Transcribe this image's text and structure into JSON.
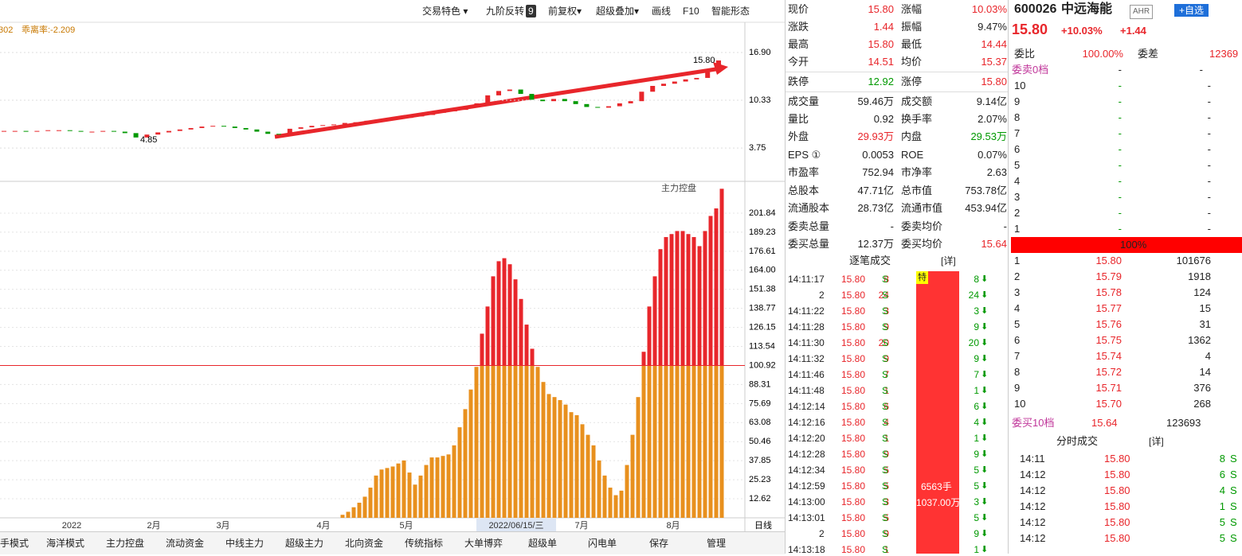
{
  "toolbar": [
    "交易特色 ▾",
    "九阶反转",
    "9",
    "前复权▾",
    "超级叠加▾",
    "画线",
    "F10",
    "智能形态"
  ],
  "chart_data": [
    {
      "type": "candlestick",
      "annotations": [
        "302",
        "乖离率:-2.209"
      ],
      "last_label": "15.80",
      "low_label": "4.85",
      "close": [
        6.1,
        6.1,
        6.0,
        6.1,
        6.2,
        6.2,
        6.1,
        6.0,
        6.0,
        6.1,
        6.0,
        5.8,
        5.2,
        5.6,
        5.9,
        6.1,
        6.3,
        6.5,
        6.7,
        6.8,
        6.7,
        6.5,
        6.3,
        6.0,
        5.7,
        5.6,
        6.4,
        6.6,
        6.8,
        6.9,
        7.0,
        7.2,
        7.3,
        7.5,
        7.6,
        7.8,
        7.9,
        8.1,
        8.3,
        8.6,
        8.8,
        9.0,
        9.4,
        9.9,
        11.0,
        11.6,
        11.8,
        11.2,
        10.4,
        10.2,
        10.5,
        10.2,
        9.8,
        9.4,
        9.3,
        9.5,
        9.9,
        10.2,
        11.5,
        12.3,
        12.6,
        12.9,
        13.2,
        13.4,
        14.2,
        15.8
      ],
      "up_color": "#e8262b",
      "down_color": "#009900",
      "ylim": [
        -0.84,
        20.84
      ],
      "yticks": [
        3.75,
        10.33,
        {
          "value": 16.9,
          "label": "16.90"
        }
      ]
    },
    {
      "type": "bar",
      "title": "主力控盘",
      "values": [
        2,
        4,
        7,
        10,
        14,
        20,
        28,
        32,
        33,
        34,
        36,
        38,
        30,
        22,
        28,
        35,
        40,
        40,
        41,
        42,
        48,
        60,
        72,
        85,
        100,
        122,
        140,
        160,
        170,
        172,
        168,
        158,
        145,
        128,
        112,
        100,
        90,
        82,
        80,
        78,
        75,
        70,
        68,
        62,
        55,
        48,
        38,
        28,
        20,
        15,
        18,
        35,
        55,
        80,
        110,
        140,
        160,
        178,
        186,
        188,
        190,
        190,
        188,
        186,
        180,
        190,
        200,
        205,
        218
      ],
      "color": "#e8901e",
      "high_color": "#e8262b",
      "threshold": 100.92,
      "ylim": [
        0,
        220.8
      ],
      "yticks": [
        12.62,
        25.23,
        37.85,
        50.46,
        63.08,
        75.69,
        88.31,
        100.92,
        113.54,
        126.15,
        138.77,
        151.38,
        {
          "value": 164,
          "label": "164.00"
        },
        176.61,
        189.23,
        201.84
      ],
      "xlabels": [
        "2022",
        "2月",
        "3月",
        "4月",
        "5月",
        "2022/06/15/三",
        "7月",
        "8月"
      ],
      "period": "日线"
    }
  ],
  "tabs": [
    "手模式",
    "海洋模式",
    "主力控盘",
    "流动资金",
    "中线主力",
    "超级主力",
    "北向资金",
    "传统指标",
    "大单博弈",
    "超级单",
    "闪电单",
    "保存",
    "管理"
  ],
  "quote": [
    [
      "现价",
      "15.80",
      "涨幅",
      "10.03%"
    ],
    [
      "涨跌",
      "1.44",
      "振幅",
      "9.47%"
    ],
    [
      "最高",
      "15.80",
      "最低",
      "14.44"
    ],
    [
      "今开",
      "14.51",
      "均价",
      "15.37"
    ],
    [
      "跌停",
      "12.92",
      "涨停",
      "15.80"
    ],
    [
      "成交量",
      "59.46万",
      "成交额",
      "9.14亿"
    ],
    [
      "量比",
      "0.92",
      "换手率",
      "2.07%"
    ],
    [
      "外盘",
      "29.93万",
      "内盘",
      "29.53万"
    ],
    [
      "EPS ①",
      "0.0053",
      "ROE",
      "0.07%"
    ],
    [
      "市盈率",
      "752.94",
      "市净率",
      "2.63"
    ],
    [
      "总股本",
      "47.71亿",
      "总市值",
      "753.78亿"
    ],
    [
      "流通股本",
      "28.73亿",
      "流通市值",
      "453.94亿"
    ],
    [
      "委卖总量",
      "-",
      "委卖均价",
      "-"
    ],
    [
      "委买总量",
      "12.37万",
      "委买均价",
      "15.64"
    ]
  ],
  "ticks_title": "逐笔成交",
  "detail": "[详]",
  "big_flag": "特",
  "big_vol": "6563手",
  "big_amt": "1037.00万",
  "trades": [
    [
      "14:11:17",
      "15.80",
      "8",
      "S"
    ],
    [
      "2",
      "15.80",
      "24",
      "S"
    ],
    [
      "14:11:22",
      "15.80",
      "3",
      "S"
    ],
    [
      "14:11:28",
      "15.80",
      "9",
      "S"
    ],
    [
      "14:11:30",
      "15.80",
      "20",
      "S"
    ],
    [
      "14:11:32",
      "15.80",
      "9",
      "S"
    ],
    [
      "14:11:46",
      "15.80",
      "7",
      "S"
    ],
    [
      "14:11:48",
      "15.80",
      "1",
      "S"
    ],
    [
      "14:12:14",
      "15.80",
      "6",
      "S"
    ],
    [
      "14:12:16",
      "15.80",
      "4",
      "S"
    ],
    [
      "14:12:20",
      "15.80",
      "1",
      "S"
    ],
    [
      "14:12:28",
      "15.80",
      "9",
      "S"
    ],
    [
      "14:12:34",
      "15.80",
      "5",
      "S"
    ],
    [
      "14:12:59",
      "15.80",
      "5",
      "S"
    ],
    [
      "14:13:00",
      "15.80",
      "3",
      "S"
    ],
    [
      "14:13:01",
      "15.80",
      "5",
      "S"
    ],
    [
      "2",
      "15.80",
      "9",
      "S"
    ],
    [
      "14:13:18",
      "15.80",
      "1",
      "S"
    ]
  ],
  "stock": {
    "code": "600026",
    "name": "中远海能",
    "tag": "AHR",
    "add": "+自选",
    "price": "15.80",
    "pct": "+10.03%",
    "chg": "+1.44"
  },
  "book": {
    "ratio_label": "委比",
    "ratio": "100.00%",
    "diff_label": "委差",
    "diff": "12369",
    "sell_head": "委卖0档",
    "dash": "-",
    "sell_levels": [
      "10",
      "9",
      "8",
      "7",
      "6",
      "5",
      "4",
      "3",
      "2",
      "1"
    ],
    "bar": "100%",
    "buys": [
      [
        "1",
        "15.80",
        "101676"
      ],
      [
        "2",
        "15.79",
        "1918"
      ],
      [
        "3",
        "15.78",
        "124"
      ],
      [
        "4",
        "15.77",
        "15"
      ],
      [
        "5",
        "15.76",
        "31"
      ],
      [
        "6",
        "15.75",
        "1362"
      ],
      [
        "7",
        "15.74",
        "4"
      ],
      [
        "8",
        "15.72",
        "14"
      ],
      [
        "9",
        "15.71",
        "376"
      ],
      [
        "10",
        "15.70",
        "268"
      ]
    ],
    "buy_head": "委买10档",
    "buy_avg": "15.64",
    "buy_total": "123693"
  },
  "minute_title": "分时成交",
  "minute": [
    [
      "14:11",
      "15.80",
      "8",
      "S"
    ],
    [
      "14:12",
      "15.80",
      "6",
      "S"
    ],
    [
      "14:12",
      "15.80",
      "4",
      "S"
    ],
    [
      "14:12",
      "15.80",
      "1",
      "S"
    ],
    [
      "14:12",
      "15.80",
      "5",
      "S"
    ],
    [
      "14:12",
      "15.80",
      "5",
      "S"
    ]
  ]
}
